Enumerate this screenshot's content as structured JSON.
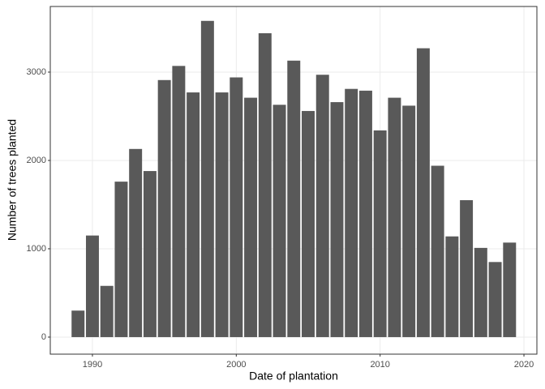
{
  "chart_data": {
    "type": "bar",
    "x_label": "Date of plantation",
    "y_label": "Number of trees planted",
    "x": [
      1989,
      1990,
      1991,
      1992,
      1993,
      1994,
      1995,
      1996,
      1997,
      1998,
      1999,
      2000,
      2001,
      2002,
      2003,
      2004,
      2005,
      2006,
      2007,
      2008,
      2009,
      2010,
      2011,
      2012,
      2013,
      2014,
      2015,
      2016,
      2017,
      2018,
      2019
    ],
    "values": [
      300,
      1150,
      580,
      1760,
      2130,
      1880,
      2910,
      3070,
      2770,
      3580,
      2770,
      2940,
      2710,
      3440,
      2630,
      3130,
      2560,
      2970,
      2660,
      2810,
      2790,
      2340,
      2710,
      2620,
      3270,
      1940,
      1140,
      1550,
      1010,
      850,
      1070
    ],
    "color": "#595959",
    "xlim": [
      1987.07,
      2020.9
    ],
    "ylim": [
      -193,
      3743
    ],
    "xticks": [
      1990,
      2000,
      2010,
      2020
    ],
    "yticks": [
      0,
      1000,
      2000,
      3000
    ],
    "grid": true
  }
}
